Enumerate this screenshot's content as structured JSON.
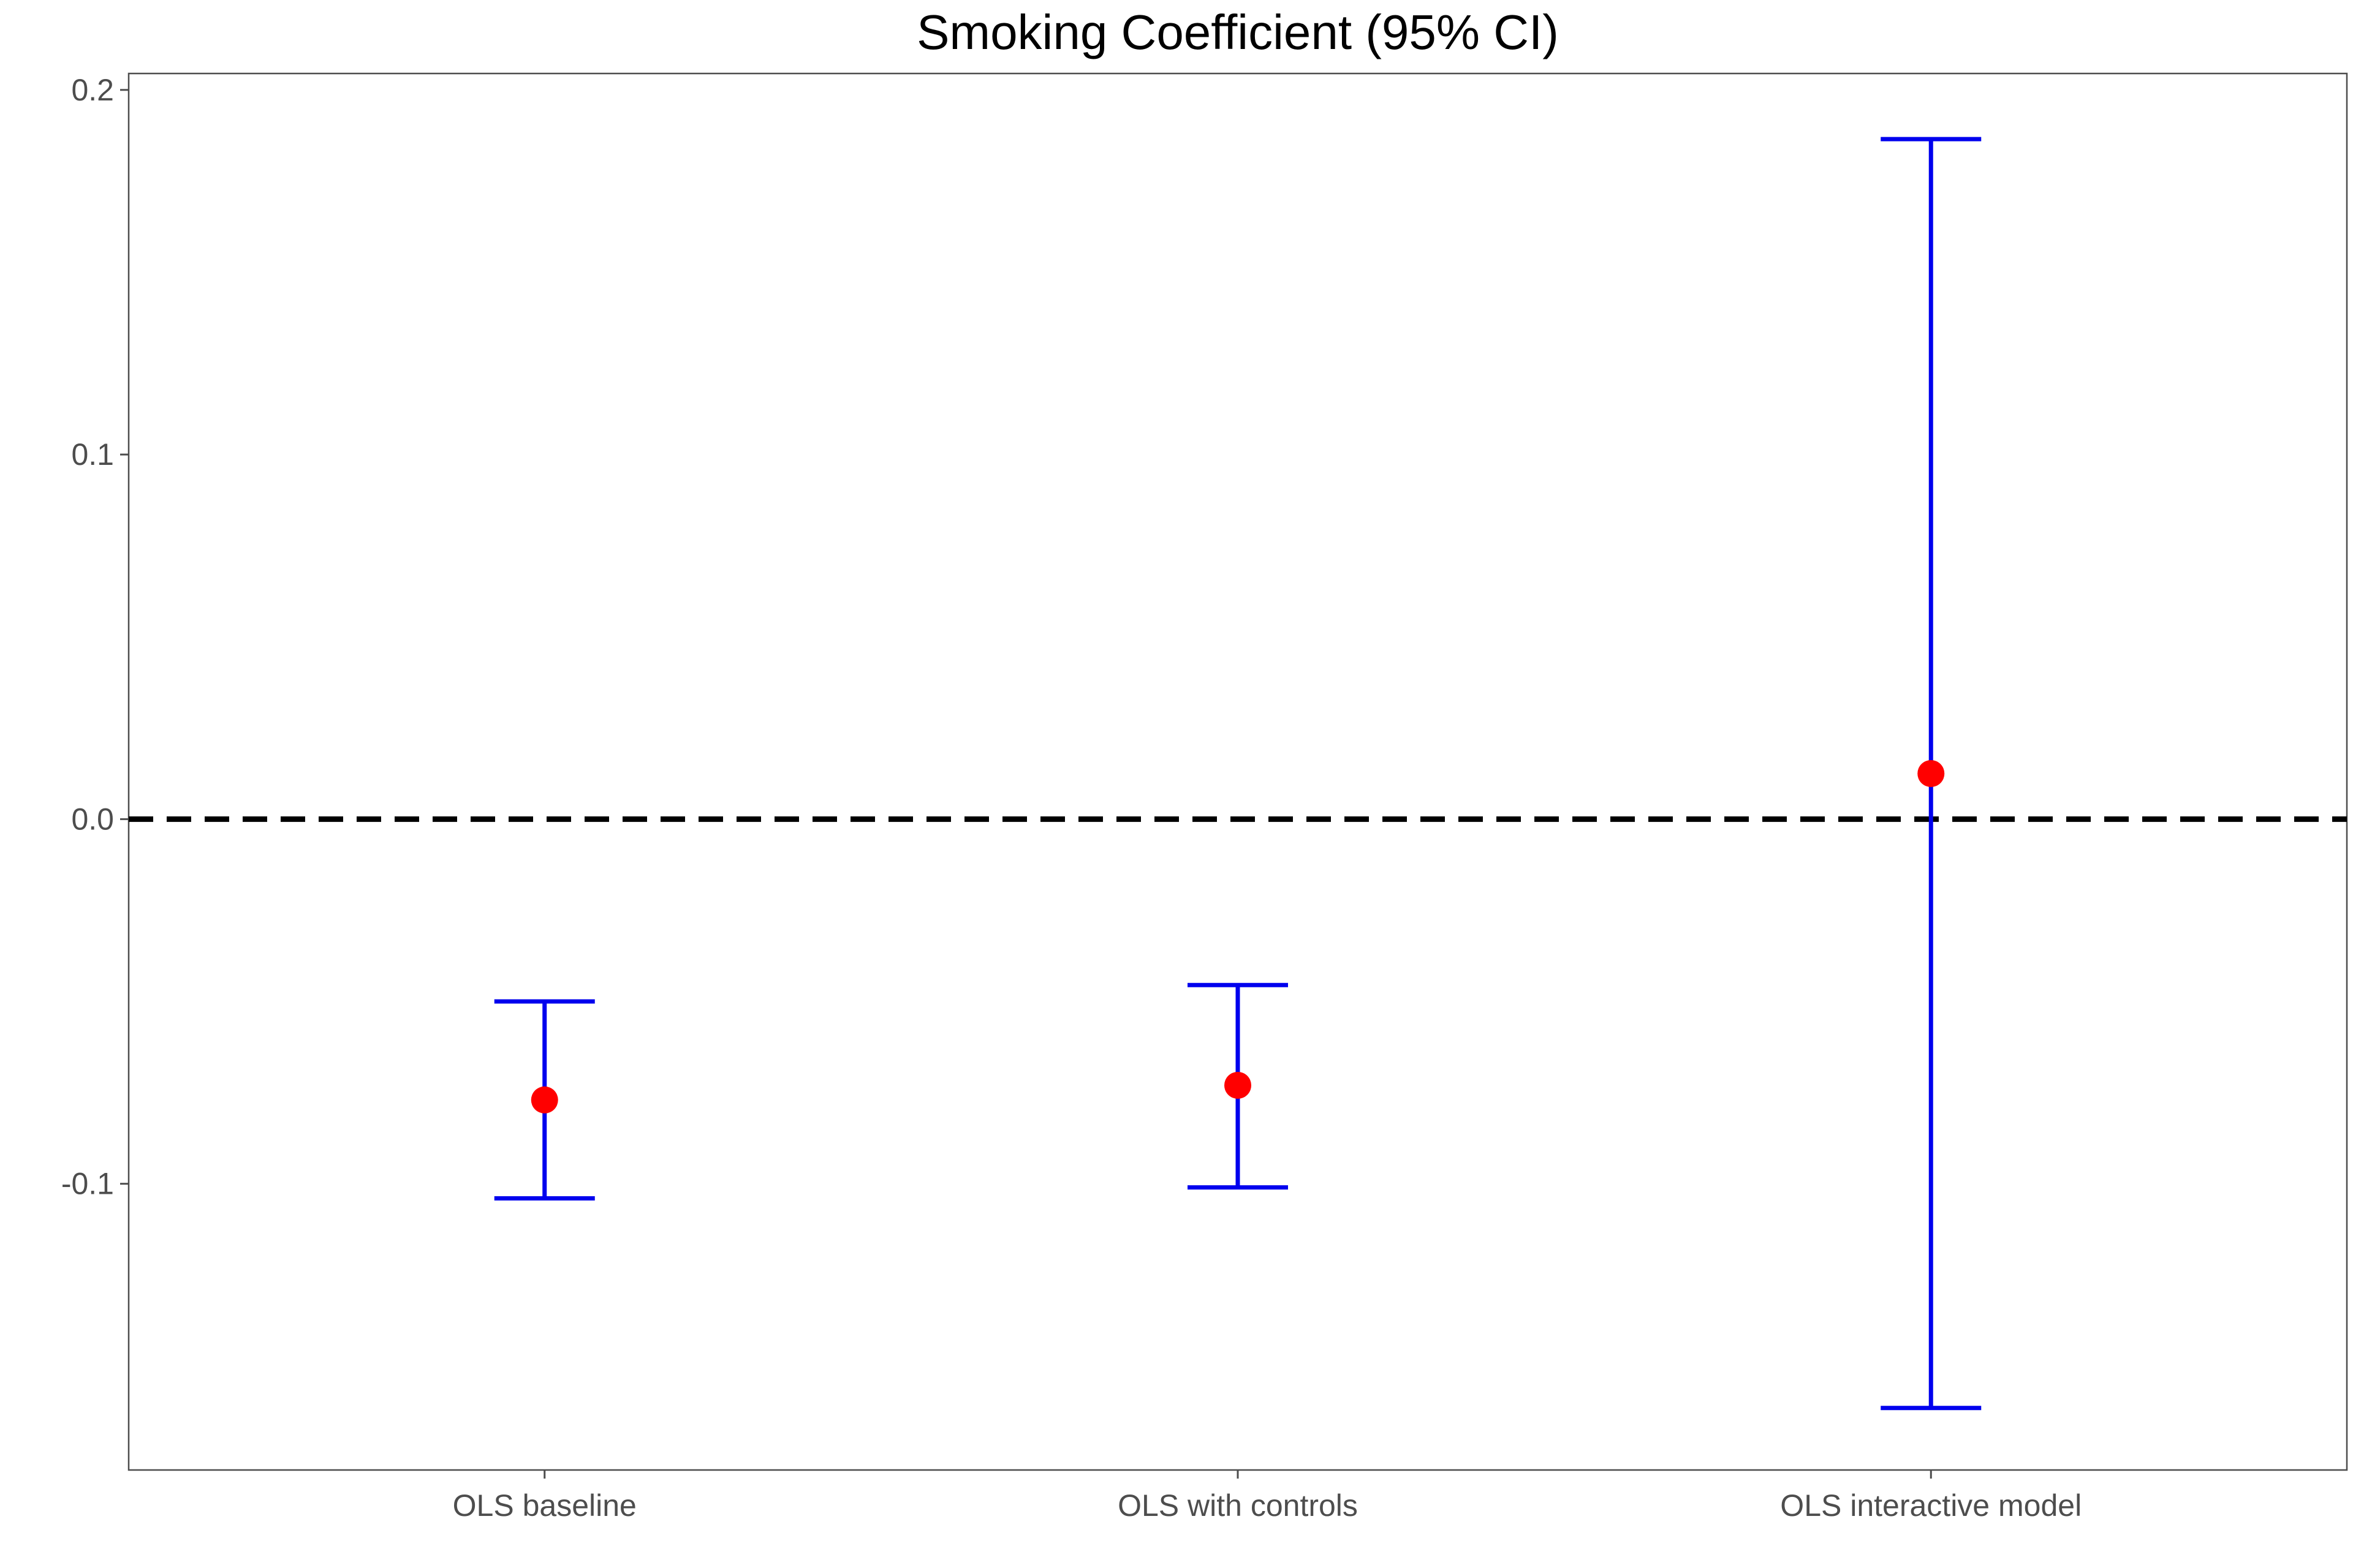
{
  "chart_data": {
    "type": "errorbar",
    "title": "Smoking Coefficient (95% CI)",
    "xlabel": "",
    "ylabel": "",
    "categories": [
      "OLS baseline",
      "OLS with controls",
      "OLS interactive model"
    ],
    "estimates": [
      -0.077,
      -0.073,
      0.0125
    ],
    "ci_lower": [
      -0.104,
      -0.101,
      -0.1615
    ],
    "ci_upper": [
      -0.05,
      -0.0455,
      0.1865
    ],
    "ylim": [
      -0.1785,
      0.2045
    ],
    "yticks": [
      -0.1,
      0.0,
      0.1,
      0.2
    ],
    "ytick_labels": [
      "-0.1",
      "0.0",
      "0.1",
      "0.2"
    ],
    "reference_line": {
      "y": 0.0,
      "style": "dashed",
      "color": "#000000"
    },
    "colors": {
      "point": "#ff0000",
      "errorbar": "#0000ee",
      "axis": "#4d4d4d"
    },
    "grid": false,
    "legend": "none"
  }
}
